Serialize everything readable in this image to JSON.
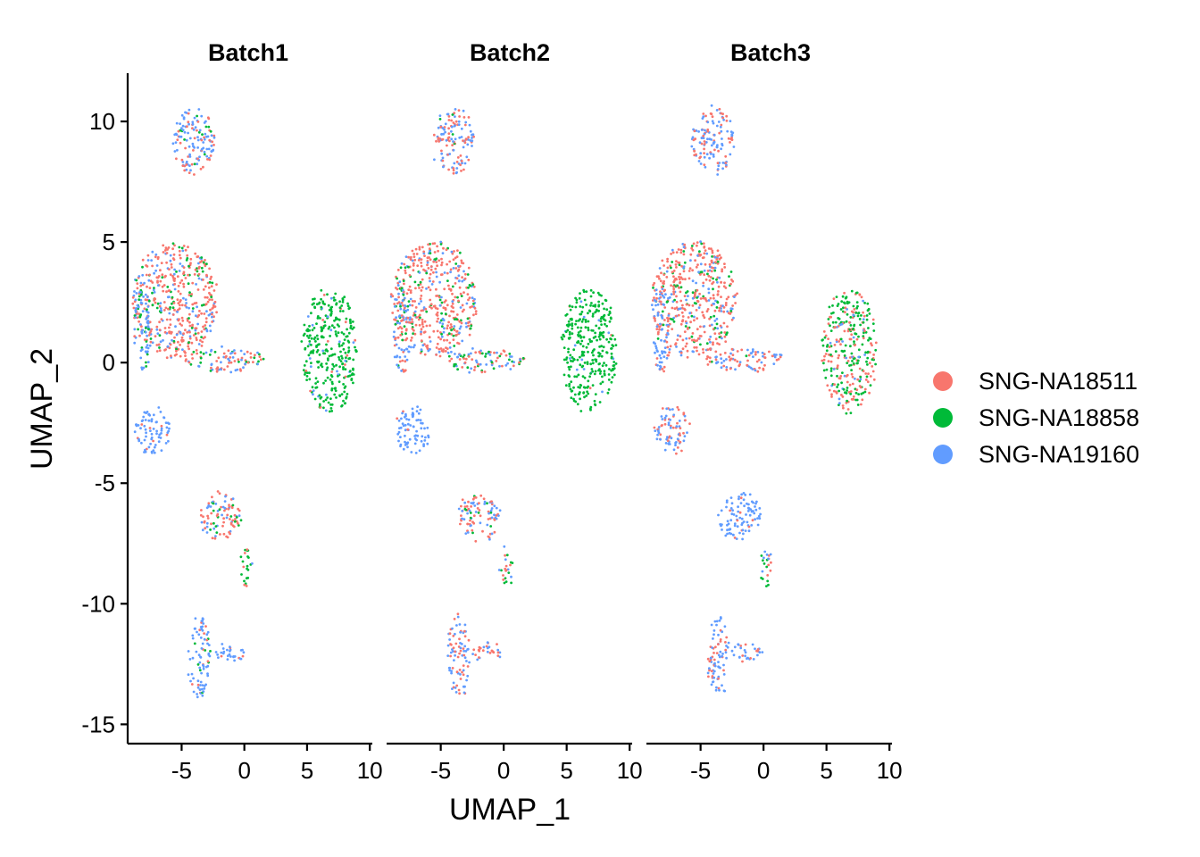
{
  "chart_data": {
    "type": "scatter",
    "facet_by": "batch",
    "facets": [
      "Batch1",
      "Batch2",
      "Batch3"
    ],
    "xlabel": "UMAP_1",
    "ylabel": "UMAP_2",
    "xlim": [
      -9.3,
      10.2
    ],
    "ylim": [
      -15.8,
      12
    ],
    "xticks": [
      -5,
      0,
      5,
      10
    ],
    "yticks": [
      10,
      5,
      0,
      -5,
      -10,
      -15
    ],
    "xtick_labels": [
      "-5",
      "0",
      "5",
      "10"
    ],
    "ytick_labels": [
      "10",
      "5",
      "0",
      "-5",
      "-10",
      "-15"
    ],
    "legend_position": "right",
    "series": [
      {
        "name": "SNG-NA18511",
        "color": "#F8766D"
      },
      {
        "name": "SNG-NA18858",
        "color": "#00BA38"
      },
      {
        "name": "SNG-NA19160",
        "color": "#619CFF"
      }
    ],
    "clusters": [
      {
        "id": "top-island",
        "cx": -4,
        "cy": 9.2,
        "rx": 1.7,
        "ry": 1.4,
        "weights": {
          "Batch1": [
            0.35,
            0.07,
            0.58
          ],
          "Batch2": [
            0.4,
            0.05,
            0.55
          ],
          "Batch3": [
            0.3,
            0.0,
            0.7
          ]
        }
      },
      {
        "id": "left-blob",
        "cx": -5.5,
        "cy": 2.6,
        "rx": 3.4,
        "ry": 2.4,
        "weights": {
          "Batch1": [
            0.62,
            0.15,
            0.23
          ],
          "Batch2": [
            0.62,
            0.18,
            0.2
          ],
          "Batch3": [
            0.65,
            0.12,
            0.23
          ]
        }
      },
      {
        "id": "far-left-column",
        "cx": -8.1,
        "cy": 1.5,
        "rx": 0.7,
        "ry": 2.0,
        "weights": {
          "Batch1": [
            0.15,
            0.25,
            0.6
          ],
          "Batch2": [
            0.3,
            0.15,
            0.55
          ],
          "Batch3": [
            0.3,
            0.1,
            0.6
          ]
        }
      },
      {
        "id": "bridge",
        "cx": -1.5,
        "cy": 0.1,
        "rx": 3.2,
        "ry": 0.5,
        "weights": {
          "Batch1": [
            0.4,
            0.2,
            0.4
          ],
          "Batch2": [
            0.4,
            0.25,
            0.35
          ],
          "Batch3": [
            0.5,
            0.05,
            0.45
          ]
        }
      },
      {
        "id": "right-blob",
        "cx": 6.8,
        "cy": 0.5,
        "rx": 2.2,
        "ry": 2.6,
        "weights": {
          "Batch1": [
            0.03,
            0.9,
            0.07
          ],
          "Batch2": [
            0.02,
            0.94,
            0.04
          ],
          "Batch3": [
            0.38,
            0.52,
            0.1
          ]
        }
      },
      {
        "id": "lower-left-blob",
        "cx": -7.3,
        "cy": -2.8,
        "rx": 1.4,
        "ry": 1.0,
        "weights": {
          "Batch1": [
            0.1,
            0.0,
            0.9
          ],
          "Batch2": [
            0.03,
            0.0,
            0.97
          ],
          "Batch3": [
            0.35,
            0.0,
            0.65
          ]
        }
      },
      {
        "id": "mid-lower-fan",
        "cx": -1.9,
        "cy": -6.4,
        "rx": 1.7,
        "ry": 1.0,
        "weights": {
          "Batch1": [
            0.55,
            0.2,
            0.25
          ],
          "Batch2": [
            0.55,
            0.05,
            0.4
          ],
          "Batch3": [
            0.1,
            0.0,
            0.9
          ]
        }
      },
      {
        "id": "small-right-strand",
        "cx": 0.2,
        "cy": -8.5,
        "rx": 0.5,
        "ry": 0.8,
        "weights": {
          "Batch1": [
            0.15,
            0.75,
            0.1
          ],
          "Batch2": [
            0.15,
            0.55,
            0.3
          ],
          "Batch3": [
            0.35,
            0.45,
            0.2
          ]
        }
      },
      {
        "id": "bottom-blob",
        "cx": -3.6,
        "cy": -12.2,
        "rx": 0.9,
        "ry": 1.7,
        "weights": {
          "Batch1": [
            0.15,
            0.05,
            0.8
          ],
          "Batch2": [
            0.45,
            0.0,
            0.55
          ],
          "Batch3": [
            0.35,
            0.0,
            0.65
          ]
        }
      },
      {
        "id": "bottom-strand",
        "cx": -1.3,
        "cy": -12.0,
        "rx": 1.3,
        "ry": 0.4,
        "weights": {
          "Batch1": [
            0.2,
            0.0,
            0.8
          ],
          "Batch2": [
            0.45,
            0.0,
            0.55
          ],
          "Batch3": [
            0.3,
            0.0,
            0.7
          ]
        }
      }
    ]
  }
}
